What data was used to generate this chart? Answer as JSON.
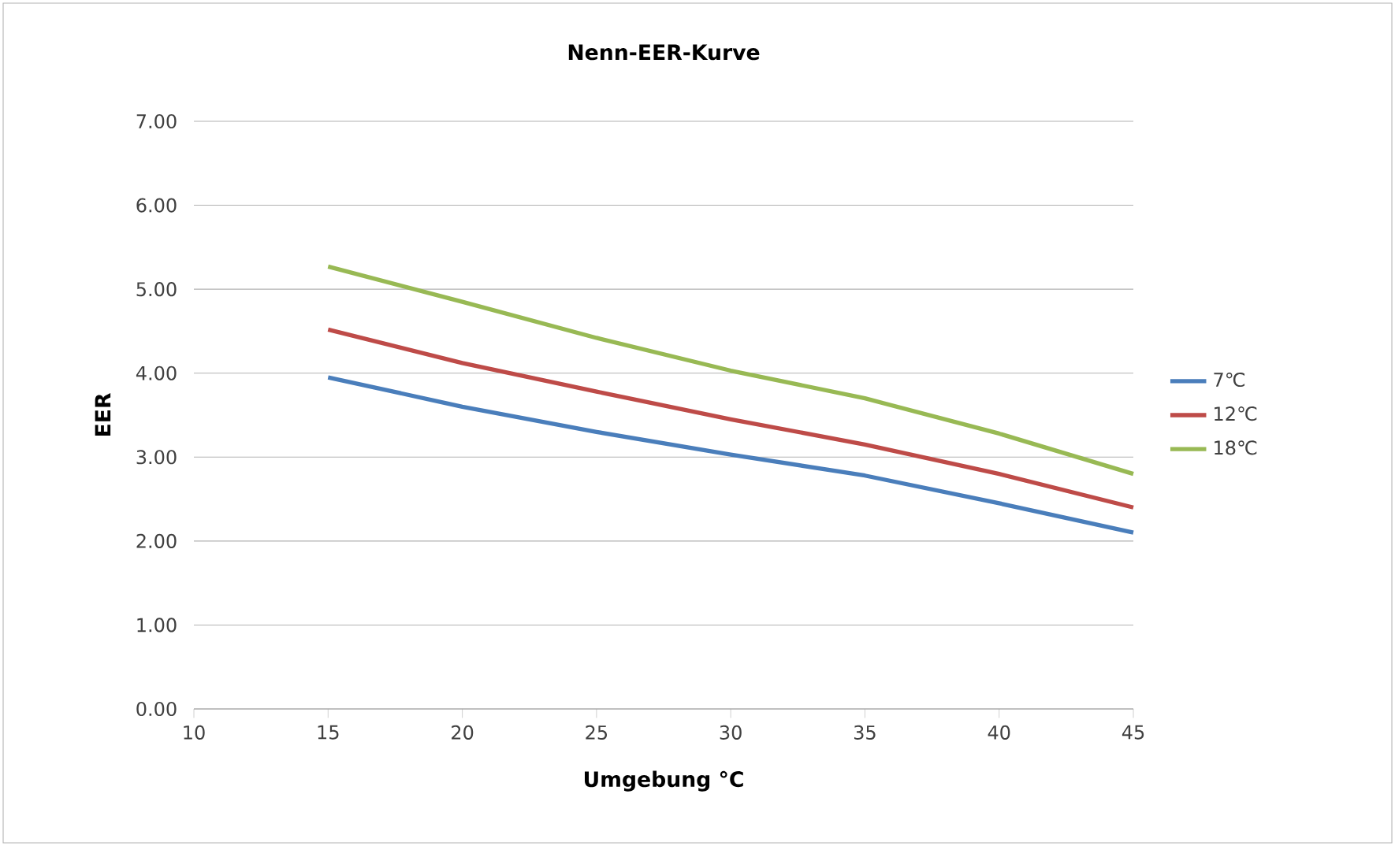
{
  "chart_data": {
    "type": "line",
    "title": "Nenn-EER-Kurve",
    "xlabel": "Umgebung °C",
    "ylabel": "EER",
    "x": [
      15,
      20,
      25,
      30,
      35,
      40,
      45
    ],
    "series": [
      {
        "name": "7℃",
        "color": "#4a7ebb",
        "values": [
          3.95,
          3.6,
          3.3,
          3.03,
          2.78,
          2.45,
          2.1
        ]
      },
      {
        "name": "12℃",
        "color": "#be4b48",
        "values": [
          4.52,
          4.12,
          3.78,
          3.45,
          3.15,
          2.8,
          2.4
        ]
      },
      {
        "name": "18℃",
        "color": "#98b954",
        "values": [
          5.27,
          4.85,
          4.42,
          4.03,
          3.7,
          3.28,
          2.8
        ]
      }
    ],
    "xlim": [
      10,
      45
    ],
    "xticks": [
      10,
      15,
      20,
      25,
      30,
      35,
      40,
      45
    ],
    "ylim": [
      0,
      7
    ],
    "yticks": [
      {
        "value": 0,
        "label": "0.00"
      },
      {
        "value": 1,
        "label": "1.00"
      },
      {
        "value": 2,
        "label": "2.00"
      },
      {
        "value": 3,
        "label": "3.00"
      },
      {
        "value": 4,
        "label": "4.00"
      },
      {
        "value": 5,
        "label": "5.00"
      },
      {
        "value": 6,
        "label": "6.00"
      },
      {
        "value": 7,
        "label": "7.00"
      }
    ],
    "grid": "y",
    "legend": "right",
    "marker": "none",
    "line_style": "solid"
  }
}
